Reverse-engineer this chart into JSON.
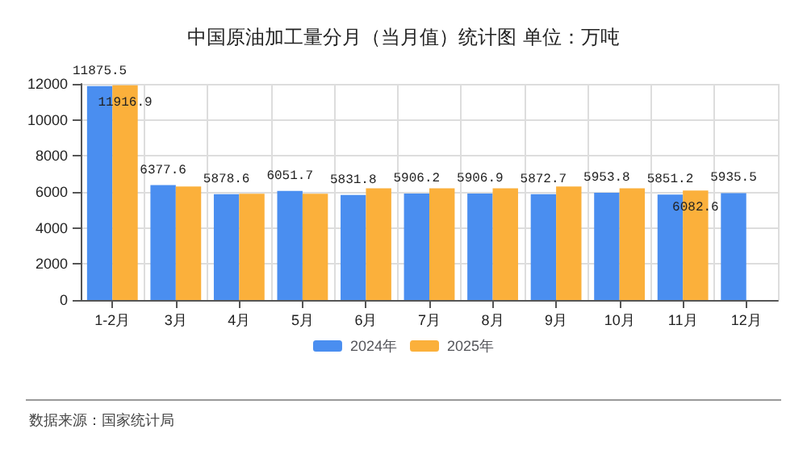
{
  "chart_data": {
    "type": "bar",
    "title": "中国原油加工量分月（当月值）统计图 单位：万吨",
    "categories": [
      "1-2月",
      "3月",
      "4月",
      "5月",
      "6月",
      "7月",
      "8月",
      "9月",
      "10月",
      "11月",
      "12月"
    ],
    "series": [
      {
        "name": "2024年",
        "color": "#4a8ef0",
        "values": [
          11875.5,
          6377.6,
          5878.6,
          6051.7,
          5831.8,
          5906.2,
          5906.9,
          5872.7,
          5953.8,
          5851.2,
          5935.5
        ],
        "value_labels": [
          "11875.5",
          "6377.6",
          "5878.6",
          "6051.7",
          "5831.8",
          "5906.2",
          "5906.9",
          "5872.7",
          "5953.8",
          "5851.2",
          "5935.5"
        ]
      },
      {
        "name": "2025年",
        "color": "#fbb03b",
        "values": [
          11916.9,
          6300,
          5900,
          5900,
          6200,
          6200,
          6200,
          6300,
          6200,
          6082.6,
          null
        ],
        "value_labels": [
          "11916.9",
          null,
          null,
          null,
          null,
          null,
          null,
          null,
          null,
          "6082.6",
          null
        ]
      }
    ],
    "ylim": [
      0,
      12000
    ],
    "yticks": [
      0,
      2000,
      4000,
      6000,
      8000,
      10000,
      12000
    ],
    "grid": true,
    "legend": "bottom",
    "annotations": [
      "数据来源：国家统计局"
    ]
  }
}
